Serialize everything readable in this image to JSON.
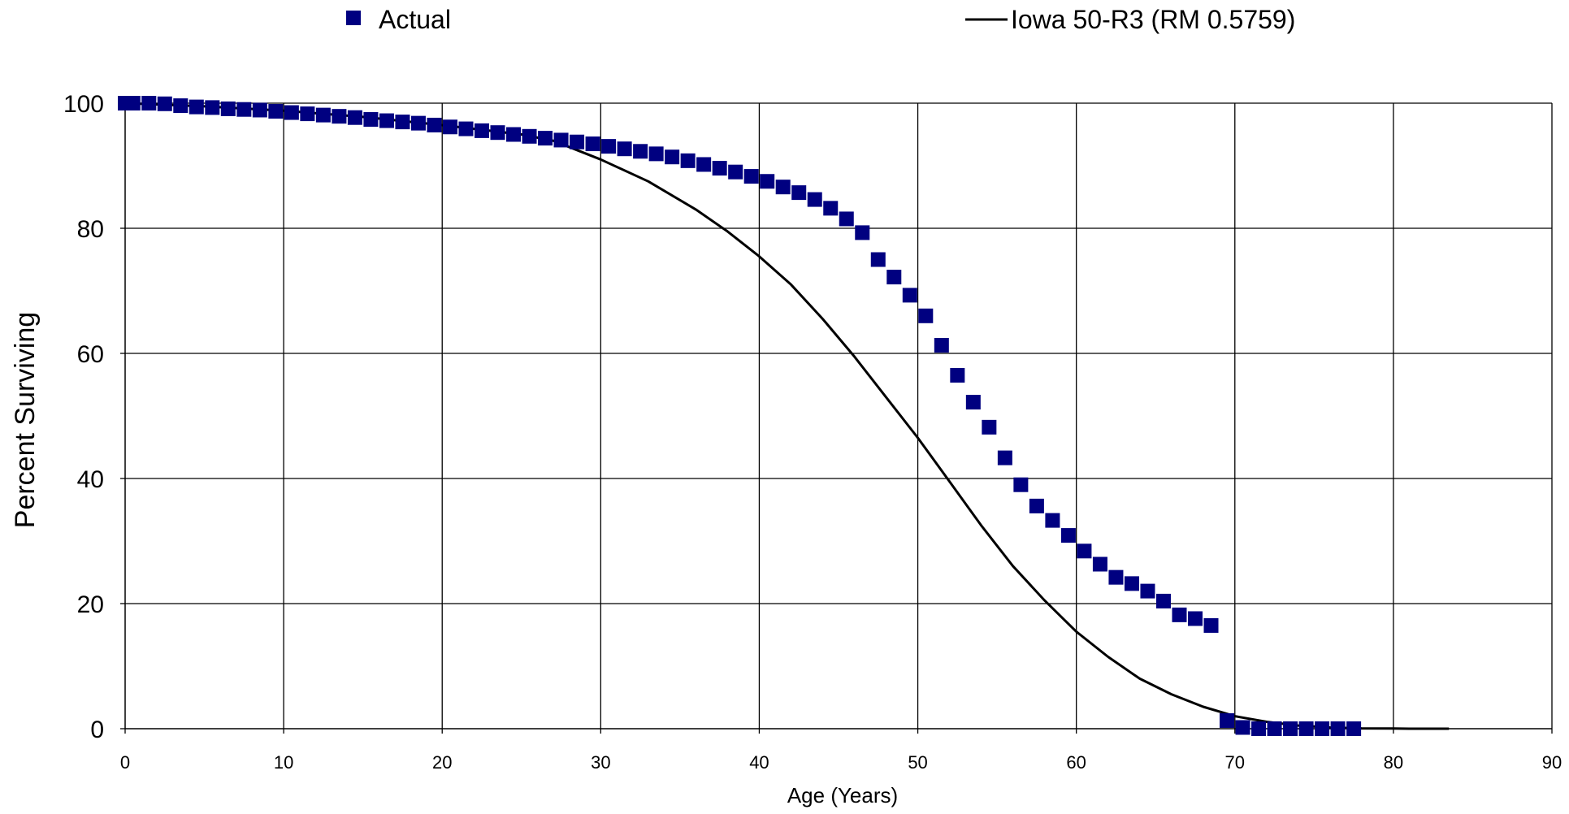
{
  "chart_data": {
    "type": "scatter",
    "title": "",
    "xlabel": "Age (Years)",
    "ylabel": "Percent Surviving",
    "xlim": [
      0,
      90
    ],
    "ylim": [
      0,
      100
    ],
    "x_ticks": [
      "0",
      "10",
      "20",
      "30",
      "40",
      "50",
      "60",
      "70",
      "80",
      "90"
    ],
    "y_ticks": [
      "0",
      "20",
      "40",
      "60",
      "80",
      "100"
    ],
    "grid": true,
    "legend_position": "top",
    "colors": {
      "actual": "#000080",
      "fit": "#000000",
      "grid": "#000000"
    },
    "series": [
      {
        "name": "Actual",
        "style": "square-markers",
        "x": [
          0,
          0.5,
          1.5,
          2.5,
          3.5,
          4.5,
          5.5,
          6.5,
          7.5,
          8.5,
          9.5,
          10.5,
          11.5,
          12.5,
          13.5,
          14.5,
          15.5,
          16.5,
          17.5,
          18.5,
          19.5,
          20.5,
          21.5,
          22.5,
          23.5,
          24.5,
          25.5,
          26.5,
          27.5,
          28.5,
          29.5,
          30.5,
          31.5,
          32.5,
          33.5,
          34.5,
          35.5,
          36.5,
          37.5,
          38.5,
          39.5,
          40.5,
          41.5,
          42.5,
          43.5,
          44.5,
          45.5,
          46.5,
          47.5,
          48.5,
          49.5,
          50.5,
          51.5,
          52.5,
          53.5,
          54.5,
          55.5,
          56.5,
          57.5,
          58.5,
          59.5,
          60.5,
          61.5,
          62.5,
          63.5,
          64.5,
          65.5,
          66.5,
          67.5,
          68.5,
          69.5,
          70.5,
          71.5,
          72.5,
          73.5,
          74.5,
          75.5,
          76.5,
          77.5
        ],
        "y": [
          100,
          100,
          100,
          99.9,
          99.6,
          99.4,
          99.3,
          99.1,
          99.0,
          98.9,
          98.7,
          98.5,
          98.3,
          98.1,
          97.9,
          97.7,
          97.4,
          97.2,
          97.0,
          96.8,
          96.5,
          96.2,
          95.9,
          95.6,
          95.3,
          95.0,
          94.7,
          94.4,
          94.1,
          93.8,
          93.5,
          93.1,
          92.7,
          92.3,
          91.9,
          91.4,
          90.8,
          90.2,
          89.6,
          89.0,
          88.3,
          87.5,
          86.6,
          85.7,
          84.6,
          83.2,
          81.5,
          79.3,
          75.0,
          72.2,
          69.3,
          66.0,
          61.3,
          56.5,
          52.2,
          48.2,
          43.3,
          39.0,
          35.6,
          33.3,
          30.9,
          28.4,
          26.3,
          24.2,
          23.2,
          22.0,
          20.4,
          18.2,
          17.6,
          16.5,
          1.3,
          0.2,
          0,
          0,
          0,
          0,
          0,
          0,
          0
        ]
      },
      {
        "name": "Iowa 50-R3 (RM 0.5759)",
        "style": "line",
        "x": [
          0,
          5,
          10,
          15,
          20,
          25,
          27,
          30,
          33,
          36,
          38,
          40,
          42,
          44,
          46,
          48,
          50,
          52,
          54,
          56,
          58,
          60,
          62,
          64,
          66,
          68,
          70,
          72,
          74,
          76,
          78,
          80,
          81,
          83.5
        ],
        "y": [
          100,
          99.5,
          98.8,
          97.8,
          96.5,
          95.0,
          94.0,
          91.0,
          87.5,
          83.0,
          79.5,
          75.5,
          71.0,
          65.5,
          59.5,
          53.0,
          46.5,
          39.5,
          32.5,
          26.0,
          20.5,
          15.5,
          11.5,
          8.0,
          5.5,
          3.5,
          2.0,
          1.1,
          0.5,
          0.2,
          0.05,
          0.02,
          0,
          0
        ]
      }
    ]
  }
}
